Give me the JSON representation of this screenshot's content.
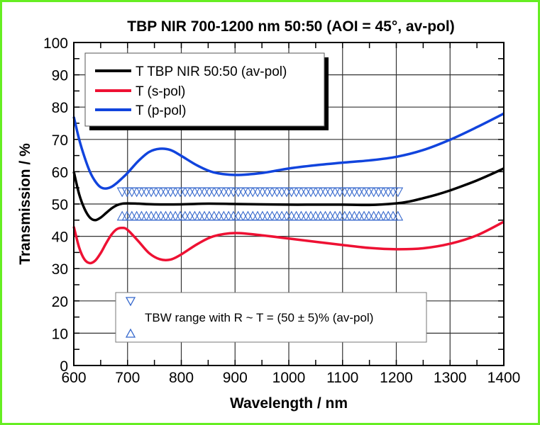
{
  "chart_data": {
    "type": "line",
    "title": "TBP NIR 700-1200 nm 50:50 (AOI = 45°, av-pol)",
    "xlabel": "Wavelength / nm",
    "ylabel": "Transmission / %",
    "xlim": [
      600,
      1400
    ],
    "ylim": [
      0,
      100
    ],
    "xticks": [
      600,
      700,
      800,
      900,
      1000,
      1100,
      1200,
      1300,
      1400
    ],
    "yticks": [
      0,
      10,
      20,
      30,
      40,
      50,
      60,
      70,
      80,
      90,
      100
    ],
    "xtick_labels": [
      "600",
      "700",
      "800",
      "900",
      "1000",
      "1100",
      "1200",
      "1300",
      "1400"
    ],
    "ytick_labels": [
      "0",
      "10",
      "20",
      "30",
      "40",
      "50",
      "60",
      "70",
      "80",
      "90",
      "100"
    ],
    "grid": true,
    "legend_placement": "top-left",
    "series": [
      {
        "name": "T TBP NIR 50:50 (av-pol)",
        "color": "#000000",
        "x": [
          600,
          610,
          620,
          630,
          640,
          650,
          660,
          670,
          680,
          690,
          700,
          720,
          750,
          800,
          850,
          900,
          950,
          1000,
          1050,
          1100,
          1150,
          1200,
          1225,
          1250,
          1275,
          1300,
          1325,
          1350,
          1375,
          1400
        ],
        "y": [
          60,
          53,
          48.5,
          45.8,
          45,
          45.8,
          47.2,
          48.6,
          49.6,
          50.1,
          50.2,
          50.1,
          49.9,
          49.9,
          50.1,
          50.0,
          49.9,
          49.8,
          49.8,
          49.8,
          49.7,
          50.2,
          50.8,
          51.8,
          52.9,
          54.2,
          55.7,
          57.3,
          59.1,
          61
        ]
      },
      {
        "name": "T (s-pol)",
        "color": "#ee1133",
        "x": [
          600,
          610,
          620,
          630,
          640,
          650,
          660,
          670,
          680,
          690,
          700,
          720,
          740,
          760,
          780,
          800,
          830,
          860,
          900,
          950,
          1000,
          1050,
          1100,
          1150,
          1200,
          1250,
          1300,
          1350,
          1400
        ],
        "y": [
          43,
          36.5,
          32.8,
          31.7,
          32.5,
          34.8,
          37.8,
          40.5,
          42.2,
          42.6,
          42.0,
          38.5,
          34.8,
          32.9,
          32.8,
          34.4,
          37.6,
          40.0,
          41.0,
          40.3,
          39.3,
          38.3,
          37.3,
          36.4,
          36.0,
          36.3,
          37.7,
          40.3,
          44.5
        ]
      },
      {
        "name": "T (p-pol)",
        "color": "#1144dd",
        "x": [
          600,
          610,
          620,
          630,
          640,
          650,
          660,
          670,
          680,
          690,
          700,
          720,
          740,
          760,
          780,
          800,
          830,
          860,
          900,
          950,
          1000,
          1050,
          1100,
          1150,
          1200,
          1250,
          1300,
          1350,
          1400
        ],
        "y": [
          77,
          70,
          64.5,
          60,
          57,
          55.2,
          54.8,
          55.3,
          56.5,
          58,
          59.6,
          63.3,
          66.1,
          67.1,
          66.7,
          64.9,
          61.9,
          59.8,
          59.0,
          59.6,
          61.0,
          62.0,
          62.8,
          63.5,
          64.6,
          66.7,
          69.9,
          73.8,
          78
        ]
      }
    ],
    "tbw_range": {
      "label": "TBW range with R ~ T = (50 ± 5)% (av-pol)",
      "x_start": 690,
      "x_end": 1210,
      "upper_marker_value": 55,
      "lower_marker_value": 45,
      "marker_color": "#3366cc",
      "upper_marker": "triangle-down",
      "lower_marker": "triangle-up"
    }
  }
}
